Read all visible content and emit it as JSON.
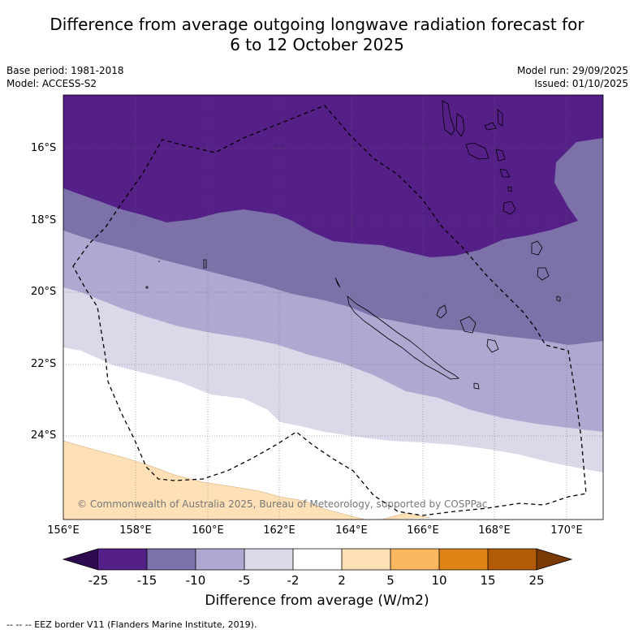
{
  "title_line1": "Difference from average outgoing longwave radiation forecast for",
  "title_line2": "6 to 12 October 2025",
  "left_meta": {
    "base_period": "Base period: 1981-2018",
    "model": "Model: ACCESS-S2"
  },
  "right_meta": {
    "model_run": "Model run: 29/09/2025",
    "issued": "Issued: 01/10/2025"
  },
  "map": {
    "lat_labels": [
      "16°S",
      "18°S",
      "20°S",
      "22°S",
      "24°S"
    ],
    "lon_labels": [
      "156°E",
      "158°E",
      "160°E",
      "162°E",
      "164°E",
      "166°E",
      "168°E",
      "170°E"
    ],
    "copyright": "© Commonwealth of Australia 2025, Bureau of Meteorology, supported by COSPPac"
  },
  "colorbar": {
    "ticks": [
      "-25",
      "-15",
      "-10",
      "-5",
      "-2",
      "2",
      "5",
      "10",
      "15",
      "25"
    ],
    "colors": [
      "#541f87",
      "#7c72a9",
      "#aea9d1",
      "#d9d9ea",
      "#ffffff",
      "#fde0b6",
      "#fbb660",
      "#e08317",
      "#b15a08"
    ],
    "under_color": "#2e0a4e",
    "over_color": "#7a3a05",
    "label": "Difference from average (W/m2)"
  },
  "footnote": "--  --  -- EEZ border V11 (Flanders Marine Institute, 2019)."
}
